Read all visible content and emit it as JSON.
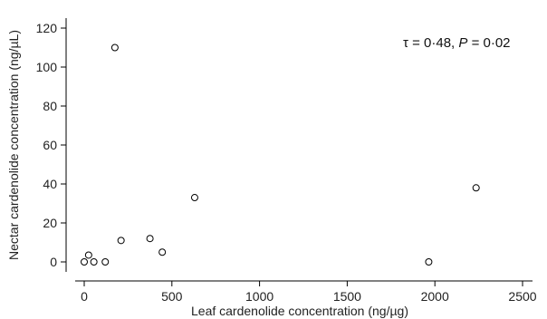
{
  "chart_data": {
    "type": "scatter",
    "xlabel": "Leaf cardenolide concentration (ng/µg)",
    "ylabel": "Nectar cardenolide concentration (ng/µL)",
    "xlim": [
      -75,
      2560
    ],
    "ylim": [
      -4,
      125
    ],
    "xticks": [
      0,
      500,
      1000,
      1500,
      2000,
      2500
    ],
    "yticks": [
      0,
      20,
      40,
      60,
      80,
      100,
      120
    ],
    "annotation": {
      "tau_symbol": "τ",
      "tau_text": " = 0·48, ",
      "p_symbol": "P",
      "p_text": " = 0·02"
    },
    "grid": false,
    "points": [
      {
        "x": 0,
        "y": 0
      },
      {
        "x": 25,
        "y": 3.5
      },
      {
        "x": 55,
        "y": 0
      },
      {
        "x": 120,
        "y": 0
      },
      {
        "x": 175,
        "y": 110
      },
      {
        "x": 210,
        "y": 11
      },
      {
        "x": 375,
        "y": 12
      },
      {
        "x": 445,
        "y": 5
      },
      {
        "x": 630,
        "y": 33
      },
      {
        "x": 1965,
        "y": 0
      },
      {
        "x": 2235,
        "y": 38
      }
    ]
  }
}
